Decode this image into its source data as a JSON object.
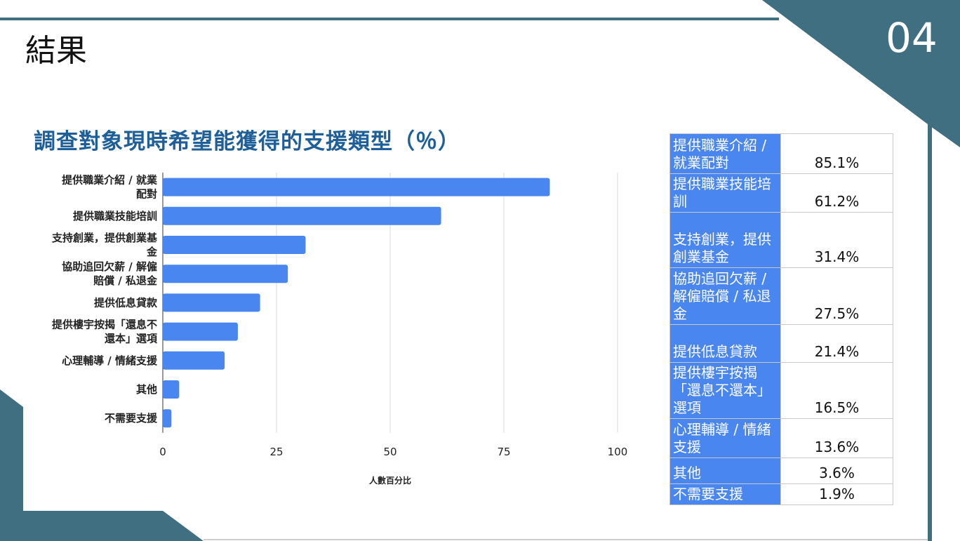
{
  "slide": {
    "title": "結果",
    "number": "04"
  },
  "theme": {
    "accent_dark": "#416f82",
    "bar_color": "#4a86f0",
    "heading_color": "#1e5f9a"
  },
  "chart_data": {
    "type": "bar",
    "orientation": "horizontal",
    "title": "調查對象現時希望能獲得的支援類型（％）",
    "xlabel": "人數百分比",
    "ylabel": "",
    "xlim": [
      0,
      100
    ],
    "x_ticks": [
      "0",
      "25",
      "50",
      "75",
      "100"
    ],
    "grid": true,
    "categories": [
      [
        "提供職業介紹 / 就業",
        "配對"
      ],
      [
        "提供職業技能培訓"
      ],
      [
        "支持創業，提供創業基",
        "金"
      ],
      [
        "協助追回欠薪 / 解僱",
        "賠償 / 私退金"
      ],
      [
        "提供低息貸款"
      ],
      [
        "提供樓宇按揭「還息不",
        "還本」選項"
      ],
      [
        "心理輔導 / 情緒支援"
      ],
      [
        "其他"
      ],
      [
        "不需要支援"
      ]
    ],
    "values": [
      85.1,
      61.2,
      31.4,
      27.5,
      21.4,
      16.5,
      13.6,
      3.6,
      1.9
    ]
  },
  "table": {
    "rows": [
      {
        "name": [
          "提供職業介紹 /",
          "就業配對"
        ],
        "value": "85.1%"
      },
      {
        "name": [
          "提供職業技能培",
          "訓"
        ],
        "value": "61.2%"
      },
      {
        "name": [
          "支持創業，提供",
          "創業基金"
        ],
        "value": "31.4%"
      },
      {
        "name": [
          "協助追回欠薪 /",
          "解僱賠償 / 私退",
          "金"
        ],
        "value": "27.5%"
      },
      {
        "name": [
          "提供低息貸款"
        ],
        "value": "21.4%"
      },
      {
        "name": [
          "提供樓宇按揭",
          "「還息不還本」",
          "選項"
        ],
        "value": "16.5%"
      },
      {
        "name": [
          "心理輔導 / 情緒",
          "支援"
        ],
        "value": "13.6%"
      },
      {
        "name": [
          "其他"
        ],
        "value": "3.6%"
      },
      {
        "name": [
          "不需要支援"
        ],
        "value": "1.9%"
      }
    ]
  }
}
